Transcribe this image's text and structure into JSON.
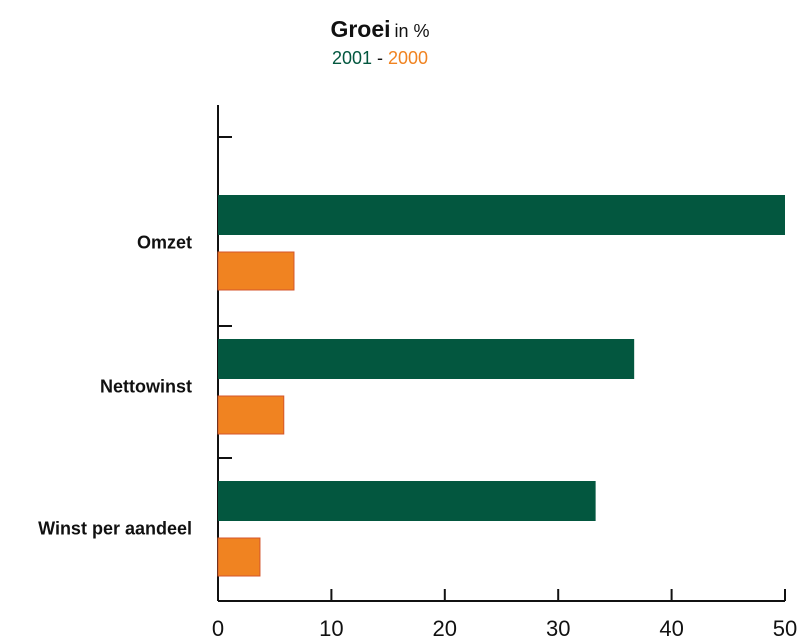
{
  "chart_data": {
    "type": "bar",
    "orientation": "horizontal",
    "title": "Groei",
    "title_unit": "in %",
    "subtitle": {
      "first": "2001",
      "separator": "-",
      "second": "2000"
    },
    "categories": [
      "Omzet",
      "Nettowinst",
      "Winst per aandeel"
    ],
    "series": [
      {
        "name": "2001",
        "color": "#03573F",
        "values": [
          50,
          36.7,
          33.3
        ]
      },
      {
        "name": "2000",
        "color": "#F08321",
        "values": [
          6.7,
          5.8,
          3.7
        ]
      }
    ],
    "xlabel": "",
    "ylabel": "",
    "xlim": [
      0,
      50
    ],
    "xticks": [
      0,
      10,
      20,
      30,
      40,
      50
    ],
    "grid": false,
    "legend": "none"
  },
  "colors": {
    "series_2001": "#03573F",
    "series_2000": "#F08321",
    "bar_outline_2000": "#D4562B",
    "axis": "#111111"
  }
}
